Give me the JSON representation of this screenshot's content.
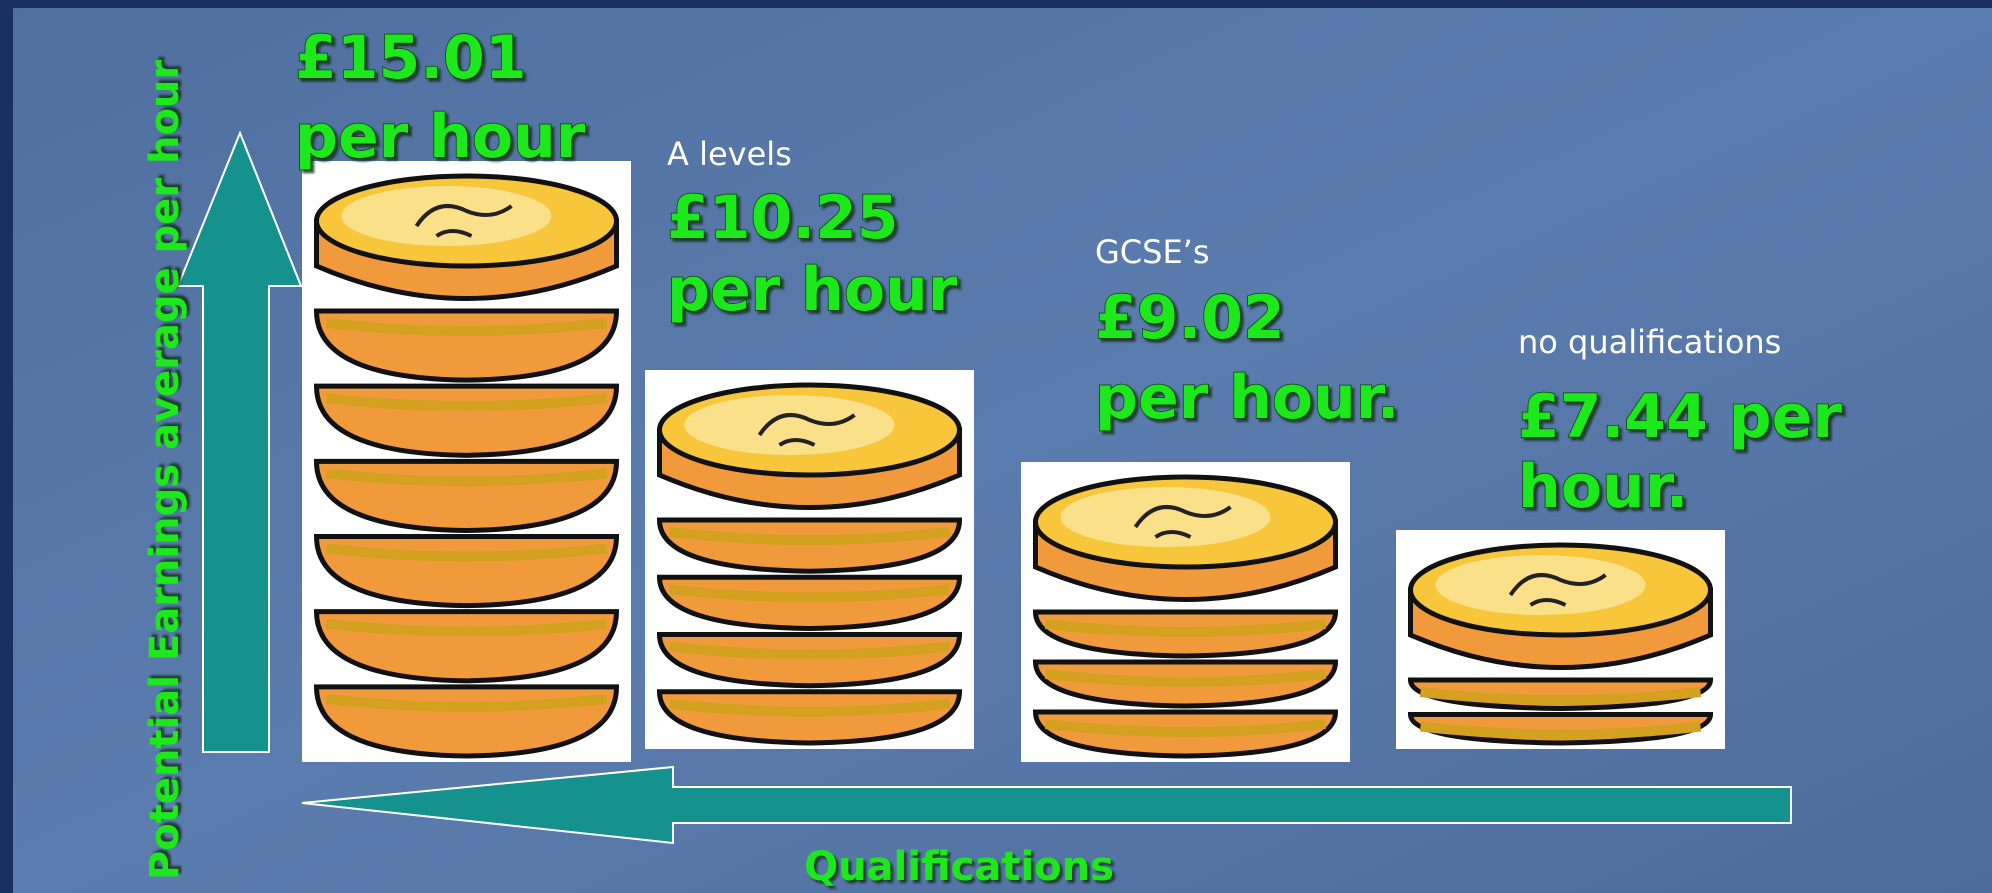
{
  "axis_label_vertical": "Potential Earnings average per hour",
  "axis_label_horizontal": "Qualifications",
  "groups": [
    {
      "lines": [
        "£15.01",
        "per hour"
      ]
    },
    {
      "category": "A levels",
      "lines": [
        "£10.25",
        "per hour"
      ]
    },
    {
      "category": "GCSE’s",
      "lines": [
        "£9.02",
        "per hour."
      ]
    },
    {
      "category": "no qualifications",
      "lines": [
        "£7.44 per",
        "hour."
      ]
    }
  ]
}
